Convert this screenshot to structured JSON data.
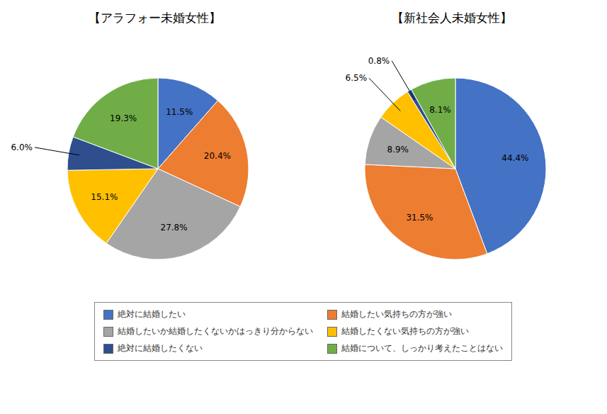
{
  "chart_data": [
    {
      "type": "pie",
      "title": "【アラフォー未婚女性】",
      "categories": [
        "絶対に結婚したい",
        "結婚したい気持ちの方が強い",
        "結婚したいか結婚したくないかはっきり分からない",
        "結婚したくない気持ちの方が強い",
        "絶対に結婚したくない",
        "結婚について、しっかり考えたことはない"
      ],
      "values": [
        11.5,
        20.4,
        27.8,
        15.1,
        6.0,
        19.3
      ],
      "value_labels": [
        "11.5%",
        "20.4%",
        "27.8%",
        "15.1%",
        "6.0%",
        "19.3%"
      ],
      "colors": [
        "#4472C4",
        "#ED7D31",
        "#A5A5A5",
        "#FFC000",
        "#2E4E8E",
        "#70AD47"
      ],
      "data_labels": true,
      "legend": "bottom"
    },
    {
      "type": "pie",
      "title": "【新社会人未婚女性】",
      "categories": [
        "絶対に結婚したい",
        "結婚したい気持ちの方が強い",
        "結婚したいか結婚したくないかはっきり分からない",
        "結婚したくない気持ちの方が強い",
        "絶対に結婚したくない",
        "結婚について、しっかり考えたことはない"
      ],
      "values": [
        44.4,
        31.5,
        8.9,
        6.5,
        0.8,
        8.1
      ],
      "value_labels": [
        "44.4%",
        "31.5%",
        "8.9%",
        "6.5%",
        "0.8%",
        "8.1%"
      ],
      "colors": [
        "#4472C4",
        "#ED7D31",
        "#A5A5A5",
        "#FFC000",
        "#2E4E8E",
        "#70AD47"
      ],
      "data_labels": true,
      "legend": "bottom"
    }
  ]
}
